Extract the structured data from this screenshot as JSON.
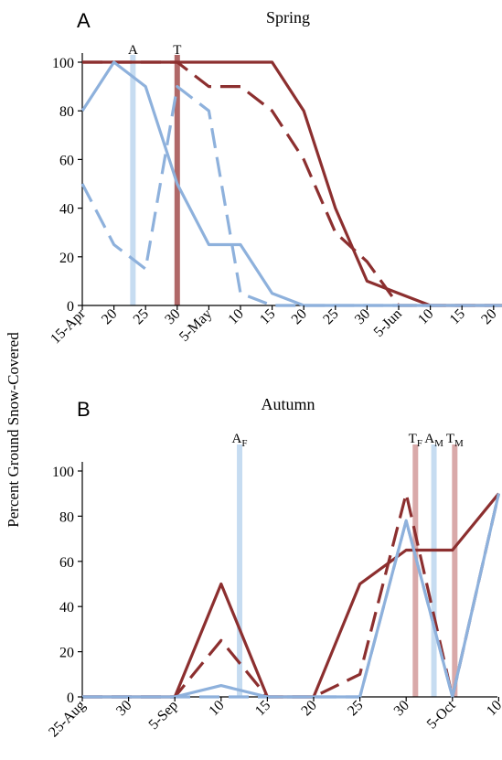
{
  "shared": {
    "ylabel": "Percent Ground Snow-Covered"
  },
  "chart_data": [
    {
      "type": "line",
      "panel_letter": "A",
      "title": "Spring",
      "x_tick_labels": [
        "15-Apr",
        "20",
        "25",
        "30",
        "5-May",
        "10",
        "15",
        "20",
        "25",
        "30",
        "5-Jun",
        "10",
        "15",
        "20"
      ],
      "x_range": [
        0,
        13.4
      ],
      "y_ticks": [
        "0",
        "20",
        "40",
        "60",
        "80",
        "100"
      ],
      "ylim": [
        0,
        100
      ],
      "markers": [
        {
          "label": "A",
          "sub": "",
          "x": 1.6,
          "color": "#c6dcf1"
        },
        {
          "label": "T",
          "sub": "",
          "x": 3.0,
          "color": "#b06868"
        }
      ],
      "series": [
        {
          "color": "#8c2f2f",
          "dash": false,
          "x": [
            0,
            1,
            2,
            3,
            4,
            5,
            6,
            7,
            8,
            9,
            10,
            11,
            12,
            13.4
          ],
          "y": [
            100,
            100,
            100,
            100,
            100,
            100,
            100,
            80,
            40,
            10,
            5,
            0,
            0,
            0
          ]
        },
        {
          "color": "#8c2f2f",
          "dash": true,
          "x": [
            0,
            1,
            2,
            3,
            4,
            5,
            6,
            7,
            8,
            9,
            10,
            11,
            12,
            13.4
          ],
          "y": [
            100,
            100,
            100,
            100,
            90,
            90,
            80,
            60,
            30,
            18,
            0,
            0,
            0,
            0
          ]
        },
        {
          "color": "#8eb1dc",
          "dash": false,
          "x": [
            0,
            1,
            2,
            3,
            4,
            5,
            6,
            7,
            8,
            9,
            10,
            11,
            12,
            13.4
          ],
          "y": [
            80,
            100,
            90,
            50,
            25,
            25,
            5,
            0,
            0,
            0,
            0,
            0,
            0,
            0
          ]
        },
        {
          "color": "#8eb1dc",
          "dash": true,
          "x": [
            0,
            1,
            2,
            3,
            4,
            5,
            6,
            7,
            8,
            9,
            10,
            11,
            12,
            13.4
          ],
          "y": [
            50,
            25,
            15,
            90,
            80,
            5,
            0,
            0,
            0,
            0,
            0,
            0,
            0,
            0
          ]
        }
      ]
    },
    {
      "type": "line",
      "panel_letter": "B",
      "title": "Autumn",
      "x_tick_labels": [
        "25-Aug",
        "30",
        "5-Sep",
        "10",
        "15",
        "20",
        "25",
        "30",
        "5-Oct",
        "10"
      ],
      "x_range": [
        0,
        9
      ],
      "y_ticks": [
        "0",
        "20",
        "40",
        "60",
        "80",
        "100"
      ],
      "ylim": [
        0,
        100
      ],
      "markers": [
        {
          "label": "A",
          "sub": "F",
          "x": 3.4,
          "color": "#c6dcf1"
        },
        {
          "label": "T",
          "sub": "F",
          "x": 7.2,
          "color": "#d9a9a9"
        },
        {
          "label": "A",
          "sub": "M",
          "x": 7.6,
          "color": "#c6dcf1"
        },
        {
          "label": "T",
          "sub": "M",
          "x": 8.05,
          "color": "#d9a9a9"
        }
      ],
      "series": [
        {
          "color": "#8c2f2f",
          "dash": false,
          "x": [
            0,
            1,
            2,
            3,
            4,
            5,
            6,
            7,
            8,
            9
          ],
          "y": [
            0,
            0,
            0,
            50,
            0,
            0,
            50,
            65,
            65,
            90
          ]
        },
        {
          "color": "#8c2f2f",
          "dash": true,
          "x": [
            0,
            1,
            2,
            3,
            4,
            5,
            6,
            7,
            8,
            9
          ],
          "y": [
            0,
            0,
            0,
            25,
            0,
            0,
            10,
            90,
            0,
            90
          ]
        },
        {
          "color": "#8eb1dc",
          "dash": false,
          "x": [
            0,
            1,
            2,
            3,
            4,
            5,
            6,
            7,
            8,
            9
          ],
          "y": [
            0,
            0,
            0,
            5,
            0,
            0,
            0,
            78,
            0,
            90
          ]
        },
        {
          "color": "#8eb1dc",
          "dash": true,
          "x": [
            0,
            1,
            2,
            3,
            4,
            5,
            6,
            7,
            8,
            9
          ],
          "y": [
            0,
            0,
            0,
            0,
            0,
            0,
            0,
            78,
            0,
            90
          ]
        }
      ]
    }
  ]
}
